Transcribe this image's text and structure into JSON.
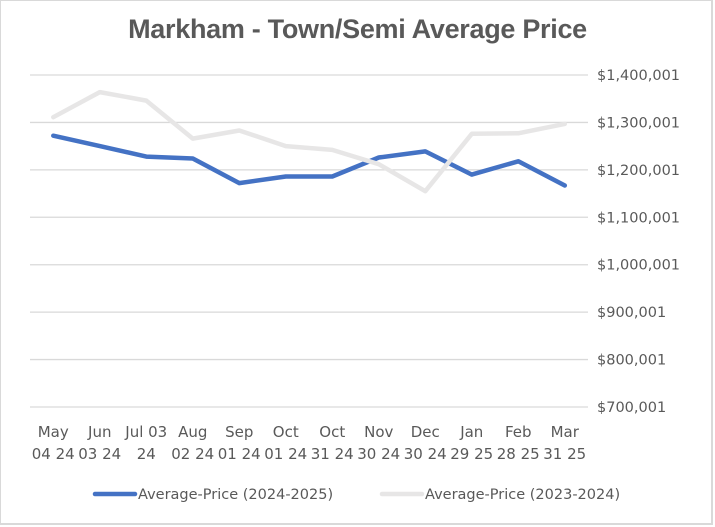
{
  "chart_data": {
    "type": "line",
    "title": "Markham - Town/Semi Average Price",
    "xlabel": "",
    "ylabel": "",
    "categories": [
      [
        "May",
        "04 24"
      ],
      [
        "Jun",
        "03 24"
      ],
      [
        "Jul 03",
        "24"
      ],
      [
        "Aug",
        "02 24"
      ],
      [
        "Sep",
        "01 24"
      ],
      [
        "Oct",
        "01 24"
      ],
      [
        "Oct",
        "31 24"
      ],
      [
        "Nov",
        "30 24"
      ],
      [
        "Dec",
        "30 24"
      ],
      [
        "Jan",
        "29 25"
      ],
      [
        "Feb",
        "28 25"
      ],
      [
        "Mar",
        "31 25"
      ]
    ],
    "y_ticks": [
      "$700,001",
      "$800,001",
      "$900,001",
      "$1,000,001",
      "$1,100,001",
      "$1,200,001",
      "$1,300,001",
      "$1,400,001"
    ],
    "ylim": [
      700001,
      1400001
    ],
    "y_axis_position": "right",
    "grid": true,
    "legend_position": "bottom",
    "series": [
      {
        "name": "Average-Price (2024-2025)",
        "color": "#4472c4",
        "values": [
          1272000,
          1250000,
          1228000,
          1224000,
          1172000,
          1186000,
          1186000,
          1226000,
          1239000,
          1190000,
          1218000,
          1167000
        ]
      },
      {
        "name": "Average-Price (2023-2024)",
        "color": "#e7e6e6",
        "values": [
          1311000,
          1364000,
          1346000,
          1266000,
          1283000,
          1250000,
          1242000,
          1212000,
          1155000,
          1276000,
          1277000,
          1297000
        ]
      }
    ]
  }
}
